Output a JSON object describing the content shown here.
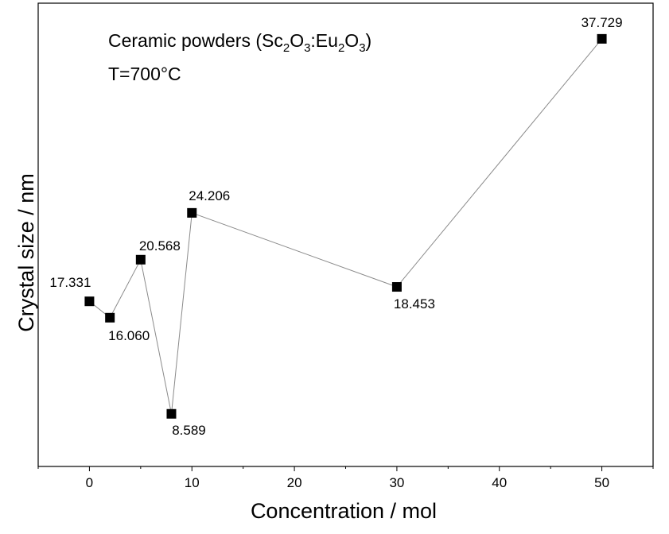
{
  "chart_data": {
    "type": "scatter",
    "title": "Ceramic powders (Sc2O3:Eu2O3)",
    "title_parts": {
      "pre": "Ceramic powders (Sc",
      "sub1": "2",
      "mid1": "O",
      "sub2": "3",
      "mid2": ":Eu",
      "sub3": "2",
      "mid3": "O",
      "sub4": "3",
      "post": ")"
    },
    "annotation": "T=700°C",
    "xlabel": "Concentration / mol",
    "ylabel": "Crystal size / nm",
    "xlim": [
      -5,
      55
    ],
    "ylim": [
      4.5,
      40.5
    ],
    "x_ticks": [
      0,
      10,
      20,
      30,
      40,
      50
    ],
    "x_tick_labels": [
      "0",
      "10",
      "20",
      "30",
      "40",
      "50"
    ],
    "y_ticks_shown": false,
    "grid": false,
    "legend": "none",
    "series": [
      {
        "x": [
          0,
          2,
          5,
          8,
          10,
          30,
          50
        ],
        "y": [
          17.331,
          16.06,
          20.568,
          8.589,
          24.206,
          18.453,
          37.729
        ],
        "point_labels": [
          "17.331",
          "16.060",
          "20.568",
          "8.589",
          "24.206",
          "18.453",
          "37.729"
        ],
        "marker": "square",
        "line_color": "#8a8a8a",
        "marker_color": "#000000"
      }
    ]
  }
}
